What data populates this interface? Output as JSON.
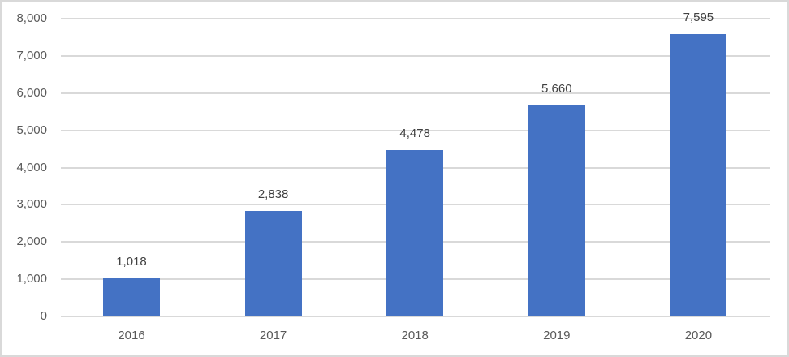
{
  "chart_data": {
    "type": "bar",
    "title": "",
    "xlabel": "",
    "ylabel": "",
    "categories": [
      "2016",
      "2017",
      "2018",
      "2019",
      "2020"
    ],
    "values": [
      1018,
      2838,
      4478,
      5660,
      7595
    ],
    "data_labels": [
      "1,018",
      "2,838",
      "4,478",
      "5,660",
      "7,595"
    ],
    "ylim": [
      0,
      8000
    ],
    "yticks": [
      "0",
      "1,000",
      "2,000",
      "3,000",
      "4,000",
      "5,000",
      "6,000",
      "7,000",
      "8,000"
    ],
    "grid": true,
    "legend": "none",
    "bar_color": "#4472c4"
  }
}
